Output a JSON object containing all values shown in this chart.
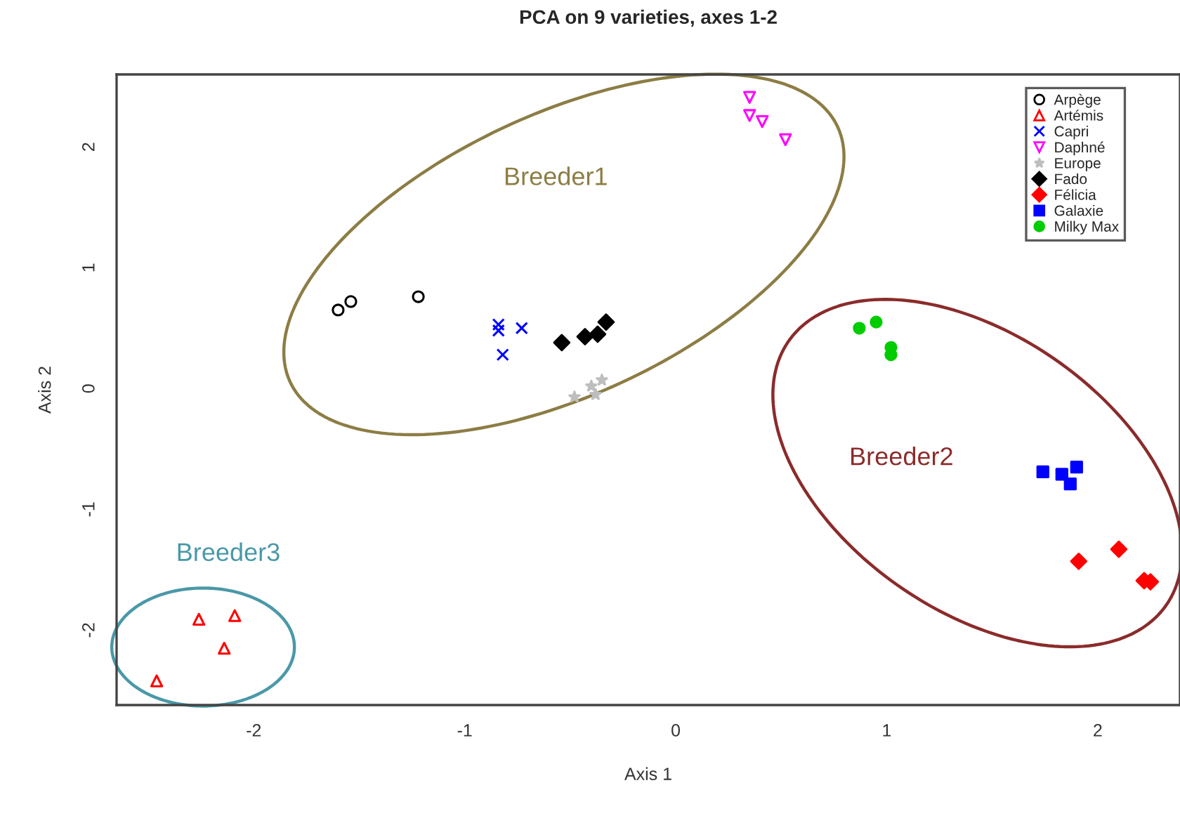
{
  "chart_data": {
    "type": "scatter",
    "title": "PCA on 9 varieties, axes 1-2",
    "xlabel": "Axis 1",
    "ylabel": "Axis 2",
    "xlim": [
      -2.65,
      2.39
    ],
    "ylim": [
      -2.62,
      2.6
    ],
    "xticks": [
      -2,
      -1,
      0,
      1,
      2
    ],
    "yticks": [
      -2,
      -1,
      0,
      1,
      2
    ],
    "grid": false,
    "legend": "top right",
    "series": [
      {
        "name": "Arpège",
        "color": "#000000",
        "marker": "circle",
        "x": [
          -1.6,
          -1.54,
          -1.22
        ],
        "values": [
          0.65,
          0.72,
          0.76
        ]
      },
      {
        "name": "Artémis",
        "color": "#ff0000",
        "marker": "triangle",
        "x": [
          -2.26,
          -2.09,
          -2.14,
          -2.46
        ],
        "values": [
          -1.91,
          -1.88,
          -2.15,
          -2.42
        ]
      },
      {
        "name": "Capri",
        "color": "#0000ff",
        "marker": "cross",
        "x": [
          -0.84,
          -0.84,
          -0.73,
          -0.82
        ],
        "values": [
          0.53,
          0.48,
          0.5,
          0.28
        ]
      },
      {
        "name": "Daphné",
        "color": "#ff00ff",
        "marker": "triangle_down",
        "x": [
          0.35,
          0.35,
          0.41,
          0.52
        ],
        "values": [
          2.41,
          2.26,
          2.21,
          2.06
        ]
      },
      {
        "name": "Europe",
        "color": "#bebebe",
        "marker": "star",
        "x": [
          -0.48,
          -0.4,
          -0.35,
          -0.38
        ],
        "values": [
          -0.07,
          0.02,
          0.07,
          -0.05
        ]
      },
      {
        "name": "Fado",
        "color": "#000000",
        "marker": "diamond",
        "x": [
          -0.54,
          -0.43,
          -0.37,
          -0.33
        ],
        "values": [
          0.38,
          0.43,
          0.45,
          0.55
        ]
      },
      {
        "name": "Félicia",
        "color": "#ff0000",
        "marker": "diamond",
        "x": [
          1.91,
          2.1,
          2.22,
          2.25
        ],
        "values": [
          -1.43,
          -1.33,
          -1.59,
          -1.6
        ]
      },
      {
        "name": "Galaxie",
        "color": "#0000ff",
        "marker": "square",
        "x": [
          1.74,
          1.83,
          1.87,
          1.9
        ],
        "values": [
          -0.69,
          -0.71,
          -0.79,
          -0.65
        ]
      },
      {
        "name": "Milky Max",
        "color": "#00cd00",
        "marker": "circle",
        "x": [
          0.87,
          0.95,
          1.02,
          1.02
        ],
        "values": [
          0.5,
          0.55,
          0.34,
          0.28
        ]
      }
    ],
    "annotations": [
      "Breeder1",
      "Breeder2",
      "Breeder3"
    ]
  }
}
